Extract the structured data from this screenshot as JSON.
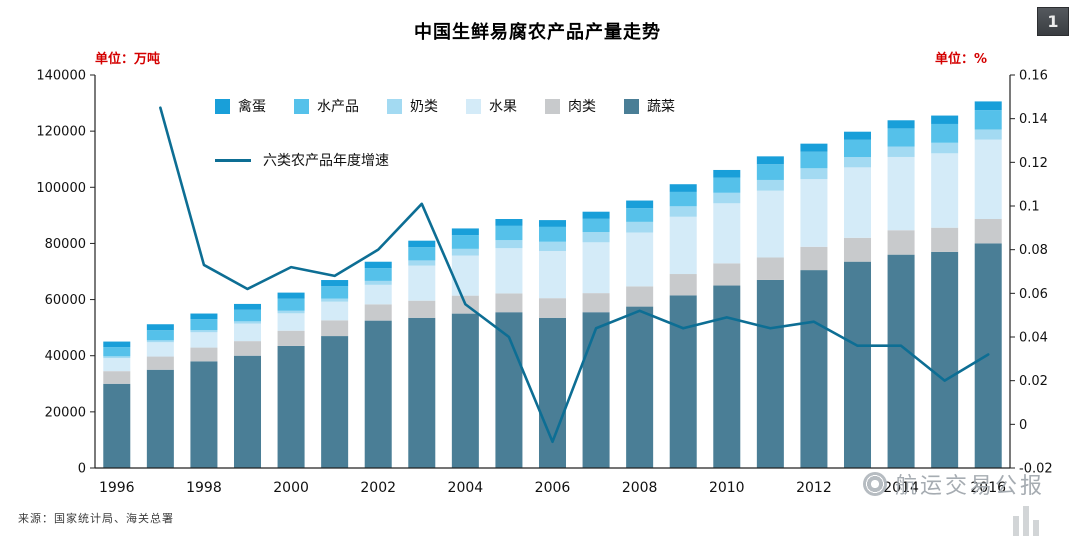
{
  "page": {
    "title": "中国生鲜易腐农产品产量走势",
    "badge": "1",
    "unit_left": "单位：万吨",
    "unit_right": "单位：%",
    "source": "来源：国家统计局、海关总署",
    "watermark": "航运交易公报"
  },
  "legend": {
    "bar_items": [
      "禽蛋",
      "水产品",
      "奶类",
      "水果",
      "肉类",
      "蔬菜"
    ],
    "line_item": "六类农产品年度增速"
  },
  "chart_data": {
    "type": "bar",
    "subtype": "stacked-bars-with-line",
    "title": "中国生鲜易腐农产品产量走势",
    "xlabel": "",
    "ylabel_left": "单位：万吨",
    "ylabel_right": "单位：%",
    "legend_position": "top-left-inside",
    "grid": false,
    "categories": [
      1996,
      1997,
      1998,
      1999,
      2000,
      2001,
      2002,
      2003,
      2004,
      2005,
      2006,
      2007,
      2008,
      2009,
      2010,
      2011,
      2012,
      2013,
      2014,
      2015,
      2016
    ],
    "x_tick_step": 2,
    "y_left": {
      "min": 0,
      "max": 140000,
      "step": 20000
    },
    "y_right": {
      "min": -0.02,
      "max": 0.16,
      "step": 0.02
    },
    "series": [
      {
        "name": "蔬菜",
        "color": "#4a7e96",
        "values": [
          30000,
          35000,
          38000,
          40000,
          43500,
          47000,
          52500,
          53500,
          55000,
          55500,
          53500,
          55500,
          57500,
          61500,
          65000,
          67000,
          70500,
          73500,
          76000,
          77000,
          80000
        ]
      },
      {
        "name": "肉类",
        "color": "#c8cacc",
        "values": [
          4500,
          4700,
          4900,
          5200,
          5400,
          5600,
          5800,
          6100,
          6400,
          6700,
          7000,
          6800,
          7200,
          7600,
          7900,
          8000,
          8300,
          8500,
          8700,
          8600,
          8700
        ]
      },
      {
        "name": "水果",
        "color": "#d4ebf8",
        "values": [
          4650,
          5100,
          5450,
          6250,
          6200,
          6650,
          6950,
          12500,
          14300,
          16100,
          16800,
          18100,
          19200,
          20400,
          21400,
          23800,
          24100,
          25100,
          26100,
          26500,
          28300
        ]
      },
      {
        "name": "奶类",
        "color": "#a3daf2",
        "values": [
          630,
          680,
          745,
          800,
          920,
          1120,
          1400,
          1850,
          2370,
          2860,
          3300,
          3630,
          3780,
          3730,
          3740,
          3810,
          3870,
          3650,
          3720,
          3760,
          3600
        ]
      },
      {
        "name": "水产品",
        "color": "#55c1ea",
        "values": [
          3290,
          3600,
          3910,
          4120,
          4280,
          4380,
          4560,
          4700,
          4900,
          5100,
          5290,
          4740,
          4900,
          5120,
          5370,
          5600,
          5910,
          6170,
          6460,
          6700,
          6900
        ]
      },
      {
        "name": "禽蛋",
        "color": "#199fd9",
        "values": [
          1970,
          2130,
          2020,
          2080,
          2180,
          2210,
          2270,
          2330,
          2370,
          2440,
          2420,
          2530,
          2700,
          2740,
          2760,
          2810,
          2860,
          2880,
          2890,
          2990,
          3090
        ]
      }
    ],
    "line": {
      "name": "六类农产品年度增速",
      "color": "#0d6e94",
      "axis": "right",
      "x_start": 1997,
      "values": [
        0.145,
        0.073,
        0.062,
        0.072,
        0.068,
        0.08,
        0.101,
        0.055,
        0.04,
        -0.008,
        0.044,
        0.052,
        0.044,
        0.049,
        0.044,
        0.047,
        0.036,
        0.036,
        0.02,
        0.032
      ]
    }
  }
}
